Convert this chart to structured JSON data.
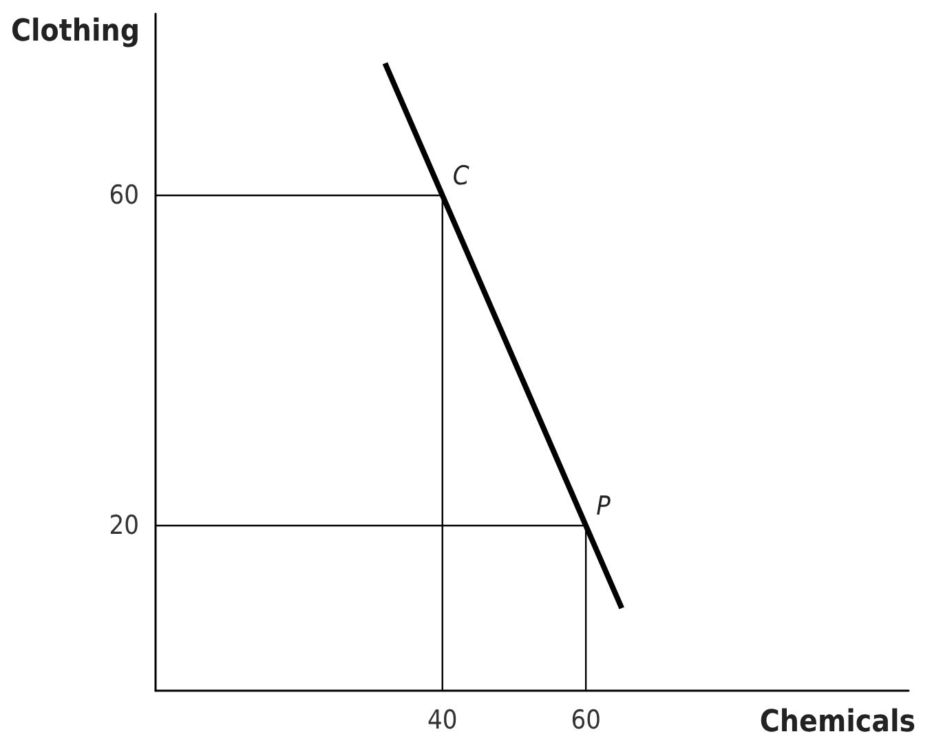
{
  "chart_data": {
    "type": "line",
    "xlabel": "Chemicals",
    "ylabel": "Clothing",
    "x": [
      32,
      40,
      60,
      65
    ],
    "series": [
      {
        "color": "#000000",
        "values": [
          76,
          60,
          20,
          10
        ]
      },
      {
        "color": "#000000",
        "x": [
          0,
          40,
          40
        ],
        "values": [
          60,
          60,
          0
        ]
      },
      {
        "color": "#000000",
        "x": [
          0,
          60,
          60
        ],
        "values": [
          20,
          20,
          0
        ]
      }
    ],
    "xlim": [
      0,
      105
    ],
    "ylim": [
      0,
      82
    ],
    "xticks": [
      40,
      60
    ],
    "yticks": [
      20,
      60
    ],
    "grid": false,
    "marker": "none",
    "line_style": "solid",
    "annotations": [
      {
        "text": "C",
        "x": 40,
        "y": 60
      },
      {
        "text": "P",
        "x": 60,
        "y": 20
      }
    ]
  }
}
